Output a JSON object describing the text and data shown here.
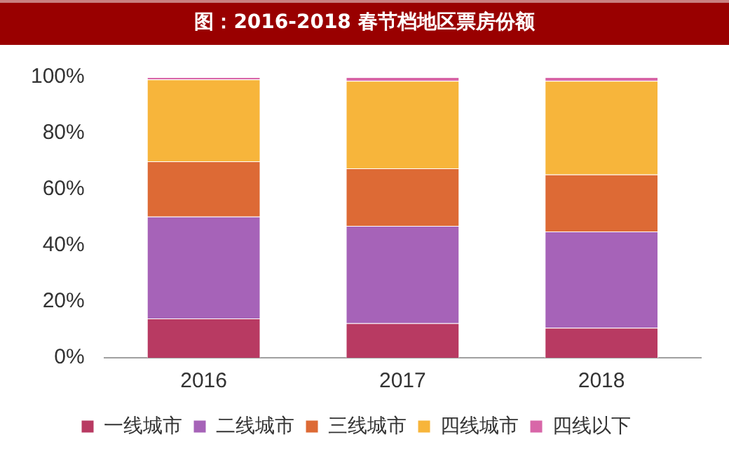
{
  "chart_data": {
    "type": "bar",
    "title": "图：2016-2018 春节档地区票房份额",
    "categories": [
      "2016",
      "2017",
      "2018"
    ],
    "stacked": true,
    "series": [
      {
        "name": "一线城市",
        "color": "#b83a62",
        "values": [
          14,
          12.3,
          10.7
        ]
      },
      {
        "name": "二线城市",
        "color": "#a663b8",
        "values": [
          36.3,
          34.7,
          34.3
        ]
      },
      {
        "name": "三线城市",
        "color": "#dd6a35",
        "values": [
          19.7,
          20.5,
          20.3
        ]
      },
      {
        "name": "四线城市",
        "color": "#f7b53b",
        "values": [
          29.2,
          31.2,
          33.4
        ]
      },
      {
        "name": "四线以下",
        "color": "#d866a8",
        "values": [
          0.8,
          1.3,
          1.3
        ]
      }
    ],
    "ylim": [
      0,
      100
    ],
    "yticks": [
      {
        "value": 0,
        "label": "0%"
      },
      {
        "value": 20,
        "label": "20%"
      },
      {
        "value": 40,
        "label": "40%"
      },
      {
        "value": 60,
        "label": "60%"
      },
      {
        "value": 80,
        "label": "80%"
      },
      {
        "value": 100,
        "label": "100%"
      }
    ],
    "grid": false,
    "legend": "bottom"
  }
}
